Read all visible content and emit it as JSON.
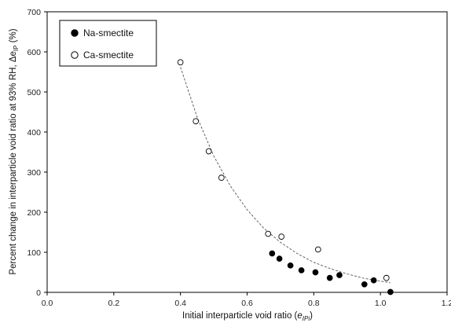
{
  "chart_data": {
    "type": "scatter",
    "xlabel": "Initial interparticle void ratio (",
    "xlabel_symbol": "e",
    "xlabel_sub": "IPi",
    "xlabel_end": ")",
    "ylabel": "Percent change in interparticle void  ratio at 93% RH, Δe",
    "ylabel_sub": "IP",
    "ylabel_end": " (%)",
    "xlim": [
      0.0,
      1.2
    ],
    "ylim": [
      0,
      700
    ],
    "xticks": [
      "0.0",
      "0.2",
      "0.4",
      "0.6",
      "0.8",
      "1.0",
      "1.2"
    ],
    "yticks": [
      "0",
      "100",
      "200",
      "300",
      "400",
      "500",
      "600",
      "700"
    ],
    "xtick_values": [
      0.0,
      0.2,
      0.4,
      0.6,
      0.8,
      1.0,
      1.2
    ],
    "ytick_values": [
      0,
      100,
      200,
      300,
      400,
      500,
      600,
      700
    ],
    "grid": false,
    "legend_position": "top-left",
    "series": [
      {
        "name": "Na-smectite",
        "marker": "filled-circle",
        "color": "#000000",
        "points": [
          {
            "x": 0.675,
            "y": 97
          },
          {
            "x": 0.697,
            "y": 84
          },
          {
            "x": 0.73,
            "y": 67
          },
          {
            "x": 0.763,
            "y": 55
          },
          {
            "x": 0.805,
            "y": 50
          },
          {
            "x": 0.848,
            "y": 36
          },
          {
            "x": 0.877,
            "y": 43
          },
          {
            "x": 0.952,
            "y": 20
          },
          {
            "x": 0.98,
            "y": 30
          },
          {
            "x": 1.03,
            "y": 1
          }
        ]
      },
      {
        "name": "Ca-smectite",
        "marker": "open-circle",
        "color": "#000000",
        "points": [
          {
            "x": 0.4,
            "y": 574
          },
          {
            "x": 0.446,
            "y": 427
          },
          {
            "x": 0.485,
            "y": 352
          },
          {
            "x": 0.523,
            "y": 286
          },
          {
            "x": 0.663,
            "y": 146
          },
          {
            "x": 0.703,
            "y": 139
          },
          {
            "x": 0.813,
            "y": 107
          },
          {
            "x": 1.018,
            "y": 36
          }
        ]
      }
    ],
    "trendline": {
      "style": "dashed",
      "color": "#555555",
      "points": [
        {
          "x": 0.4,
          "y": 562
        },
        {
          "x": 0.45,
          "y": 437
        },
        {
          "x": 0.5,
          "y": 340
        },
        {
          "x": 0.55,
          "y": 265
        },
        {
          "x": 0.6,
          "y": 206
        },
        {
          "x": 0.65,
          "y": 160
        },
        {
          "x": 0.7,
          "y": 125
        },
        {
          "x": 0.75,
          "y": 97
        },
        {
          "x": 0.8,
          "y": 75
        },
        {
          "x": 0.85,
          "y": 59
        },
        {
          "x": 0.9,
          "y": 46
        },
        {
          "x": 0.95,
          "y": 35
        },
        {
          "x": 1.0,
          "y": 28
        },
        {
          "x": 1.03,
          "y": 24
        }
      ]
    }
  }
}
